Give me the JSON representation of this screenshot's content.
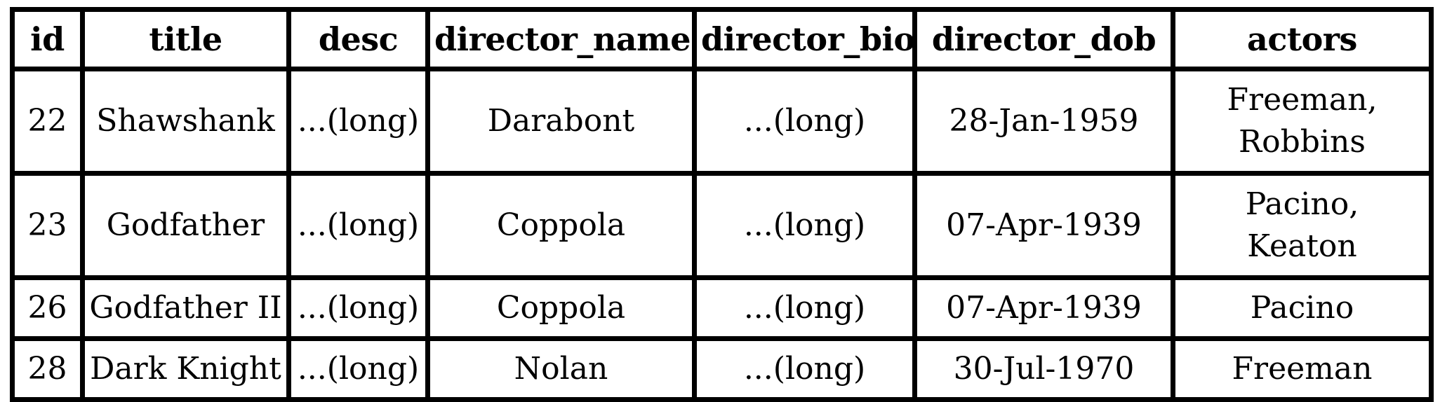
{
  "table": {
    "columns": [
      "id",
      "title",
      "desc",
      "director_name",
      "director_bio",
      "director_dob",
      "actors"
    ],
    "rows": [
      {
        "id": "22",
        "title": "Shawshank",
        "desc": "...(long)",
        "director_name": "Darabont",
        "director_bio": "...(long)",
        "director_dob": "28-Jan-1959",
        "actors": [
          "Freeman,",
          "Robbins"
        ]
      },
      {
        "id": "23",
        "title": "Godfather",
        "desc": "...(long)",
        "director_name": "Coppola",
        "director_bio": "...(long)",
        "director_dob": "07-Apr-1939",
        "actors": [
          "Pacino,",
          "Keaton"
        ]
      },
      {
        "id": "26",
        "title": "Godfather II",
        "desc": "...(long)",
        "director_name": "Coppola",
        "director_bio": "...(long)",
        "director_dob": "07-Apr-1939",
        "actors": [
          "Pacino"
        ]
      },
      {
        "id": "28",
        "title": "Dark Knight",
        "desc": "...(long)",
        "director_name": "Nolan",
        "director_bio": "...(long)",
        "director_dob": "30-Jul-1970",
        "actors": [
          "Freeman"
        ]
      }
    ]
  }
}
